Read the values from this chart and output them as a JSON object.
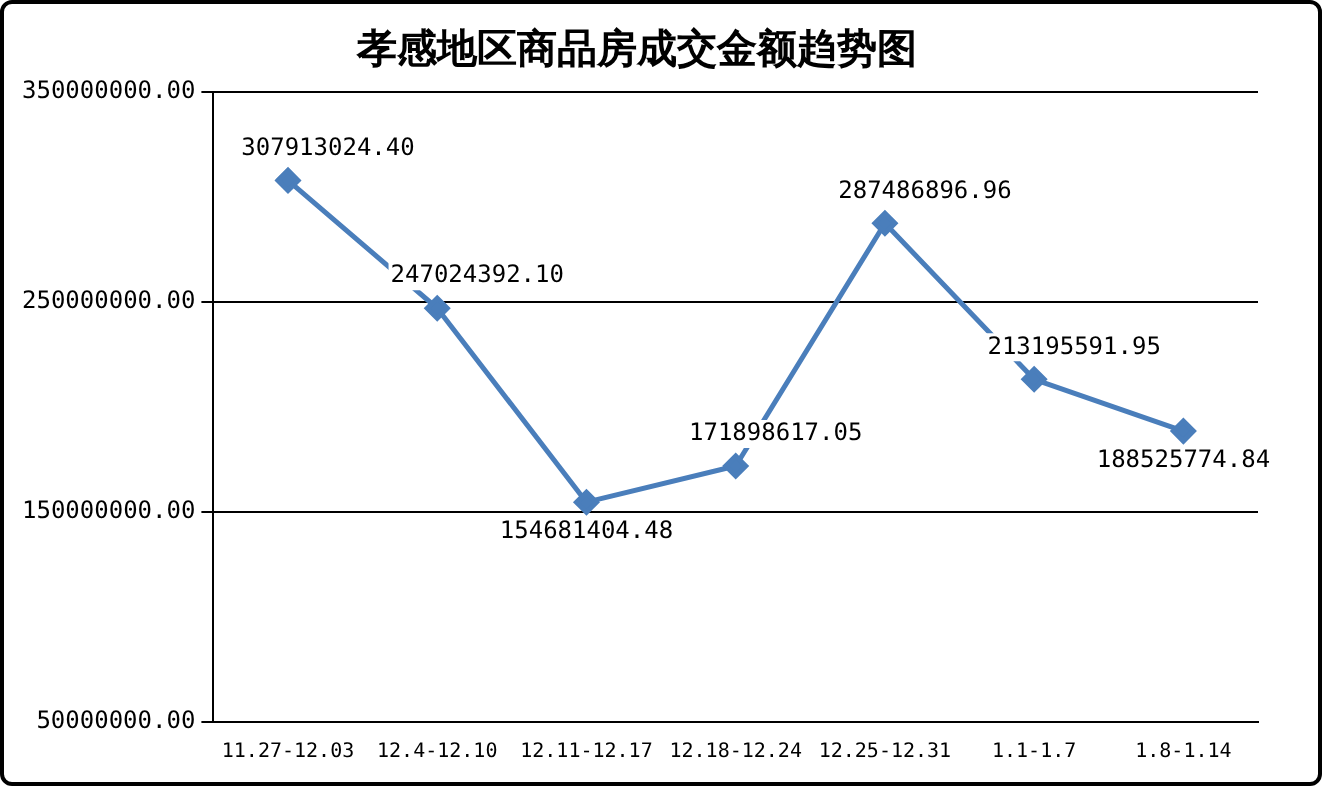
{
  "chart_data": {
    "type": "line",
    "title": "孝感地区商品房成交金额趋势图",
    "categories": [
      "11.27-12.03",
      "12.4-12.10",
      "12.11-12.17",
      "12.18-12.24",
      "12.25-12.31",
      "1.1-1.7",
      "1.8-1.14"
    ],
    "series": [
      {
        "color": "#4a7ebb",
        "values": [
          307913024.4,
          247024392.1,
          154681404.48,
          171898617.05,
          287486896.96,
          213195591.95,
          188525774.84
        ],
        "value_labels": [
          "307913024.40",
          "247024392.10",
          "154681404.48",
          "171898617.05",
          "287486896.96",
          "213195591.95",
          "188525774.84"
        ]
      }
    ],
    "ylim": [
      50000000,
      350000000
    ],
    "yticks": [
      {
        "value": 50000000,
        "label": "50000000.00"
      },
      {
        "value": 150000000,
        "label": "150000000.00"
      },
      {
        "value": 250000000,
        "label": "250000000.00"
      },
      {
        "value": 350000000,
        "label": "350000000.00"
      }
    ],
    "grid": "y",
    "legend": false,
    "marker": "diamond",
    "line_style": "solid"
  }
}
